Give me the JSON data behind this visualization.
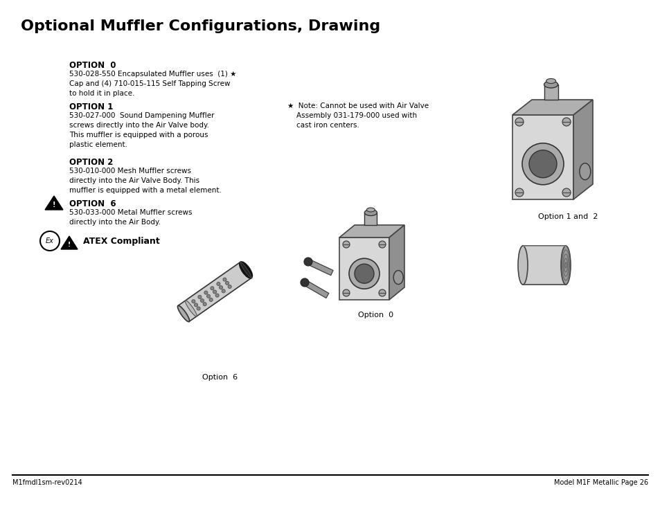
{
  "title": "Optional Muffler Configurations, Drawing",
  "bg_color": "#ffffff",
  "title_fontsize": 16,
  "footer_left": "M1fmdl1sm-rev0214",
  "footer_right": "Model M1F Metallic Page 26",
  "option0_bold": "OPTION  0",
  "option0_text": "530-028-550 Encapsulated Muffler uses  (1) ★\nCap and (4) 710-015-115 Self Tapping Screw\nto hold it in place.",
  "option1_bold": "OPTION 1",
  "option1_text": "530-027-000  Sound Dampening Muffler\nscrews directly into the Air Valve body.\nThis muffler is equipped with a porous\nplastic element.",
  "option2_bold": "OPTION 2",
  "option2_text": "530-010-000 Mesh Muffler screws\ndirectly into the Air Valve Body. This\nmuffler is equipped with a metal element.",
  "option6_bold": "OPTION  6",
  "option6_text": "530-033-000 Metal Muffler screws\ndirectly into the Air Body.",
  "note_star": "★  Note: Cannot be used with Air Valve\n    Assembly 031-179-000 used with\n    cast iron centers.",
  "atex_text": "ATEX Compliant",
  "label_option0": "Option  0",
  "label_option1and2": "Option 1 and  2",
  "label_option6": "Option  6",
  "text_color": "#000000",
  "line_color": "#000000"
}
